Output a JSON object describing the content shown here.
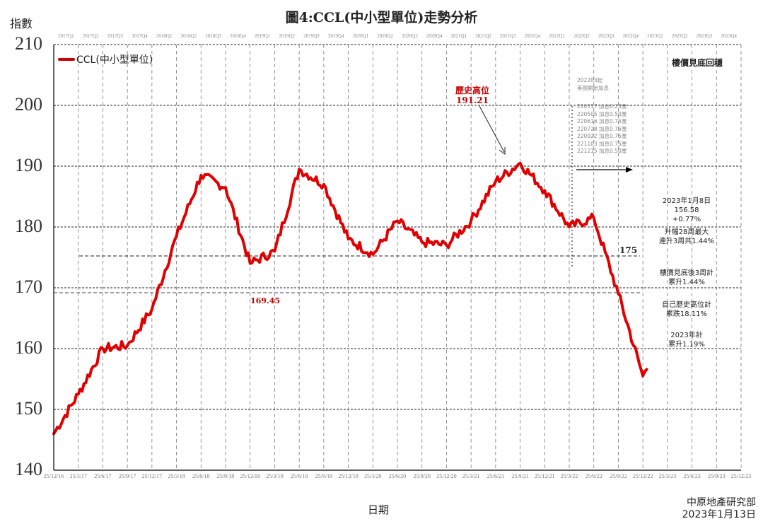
{
  "title": "圖4:CCL(中小型單位)走勢分析",
  "y_axis_label": "指數",
  "x_axis_label": "日期",
  "source": {
    "line1": "中原地產研究部",
    "line2": "2023年1月13日"
  },
  "legend": {
    "label": "CCL(中小型單位)",
    "color": "#e00000"
  },
  "corner_title": "樓價見底回穩",
  "quarters": [
    "2017Q1",
    "2017Q2",
    "2017Q3",
    "2017Q4",
    "2018Q1",
    "2018Q2",
    "2018Q3",
    "2018Q4",
    "2019Q1",
    "2019Q2",
    "2019Q3",
    "2019Q4",
    "2020Q1",
    "2020Q2",
    "2020Q3",
    "2020Q4",
    "2021Q1",
    "2021Q2",
    "2021Q3",
    "2021Q4",
    "2022Q1",
    "2022Q2",
    "2022Q3",
    "2022Q4",
    "2023Q1",
    "2023Q2",
    "2023Q3",
    "2023Q4"
  ],
  "annotations": {
    "peak": {
      "line1": "歷史高位",
      "line2": "191.21"
    },
    "trough": "169.45",
    "level175": "175",
    "rate_header": {
      "line1": "202203起",
      "line2": "美國開始加息"
    },
    "rate_hikes": [
      "220317  加息0.25厘",
      "220505  加息0.50厘",
      "220616  加息0.75厘",
      "220728  加息0.75厘",
      "220922  加息0.75厘",
      "221103  加息0.75厘",
      "221215  加息0.50厘"
    ],
    "latest": {
      "line1": "2023年1月8日",
      "line2": "156.58",
      "line3": "+0.77%"
    },
    "streak": {
      "line1": "升幅28周最大",
      "line2": "連升3周共1.44%"
    },
    "since_bottom": {
      "line1": "樓價見底後3周計",
      "line2": "累升1.44%"
    },
    "from_peak": {
      "line1": "自己歷史高位計",
      "line2": "累跌18.11%"
    },
    "ytd": {
      "line1": "2023年計",
      "line2": "累升1.19%"
    }
  },
  "chart_data": {
    "type": "line",
    "title": "圖4:CCL(中小型單位)走勢分析",
    "xlabel": "日期",
    "ylabel": "指數",
    "ylim": [
      140,
      210
    ],
    "yticks": [
      140,
      150,
      160,
      170,
      180,
      190,
      200,
      210
    ],
    "grid": true,
    "legend_position": "top-left",
    "xticks": [
      "25/12/16",
      "25/3/17",
      "25/6/17",
      "25/9/17",
      "25/12/17",
      "25/3/18",
      "25/6/18",
      "25/9/18",
      "25/12/18",
      "25/3/19",
      "25/6/19",
      "25/9/19",
      "25/12/19",
      "25/3/20",
      "25/6/20",
      "25/9/20",
      "25/12/20",
      "25/3/21",
      "25/6/21",
      "25/9/21",
      "25/12/21",
      "25/3/22",
      "25/6/22",
      "25/9/22",
      "25/12/22",
      "25/3/23",
      "25/6/23",
      "25/9/23",
      "25/12/23"
    ],
    "series": [
      {
        "name": "CCL(中小型單位)",
        "color": "#e00000",
        "x": [
          "25/12/16",
          "25/3/17",
          "25/6/17",
          "25/9/17",
          "25/12/17",
          "25/3/18",
          "25/6/18",
          "25/9/18",
          "25/12/18",
          "25/3/19",
          "25/6/19",
          "25/9/19",
          "25/12/19",
          "25/3/20",
          "25/6/20",
          "25/9/20",
          "25/12/20",
          "25/3/21",
          "25/6/21",
          "25/9/21",
          "25/12/21",
          "25/3/22",
          "25/6/22",
          "25/9/22",
          "25/12/22",
          "8/1/23"
        ],
        "values": [
          146.0,
          152.5,
          160.0,
          160.5,
          166.5,
          178.5,
          188.5,
          186.5,
          174.0,
          176.0,
          189.5,
          187.0,
          178.0,
          175.5,
          181.0,
          177.5,
          177.0,
          181.0,
          187.5,
          190.5,
          186.0,
          180.0,
          181.5,
          169.0,
          155.5,
          156.58
        ]
      }
    ],
    "reference_lines": [
      {
        "value": 175,
        "label": "175",
        "style": "dashed"
      },
      {
        "value": 169.45,
        "label": "169.45",
        "style": "dashed"
      }
    ],
    "annotations": [
      {
        "text": "歷史高位 191.21",
        "value": 191.21
      },
      {
        "text": "169.45",
        "value": 169.45
      },
      {
        "text": "2023年1月8日 156.58 +0.77%",
        "value": 156.58
      }
    ]
  }
}
